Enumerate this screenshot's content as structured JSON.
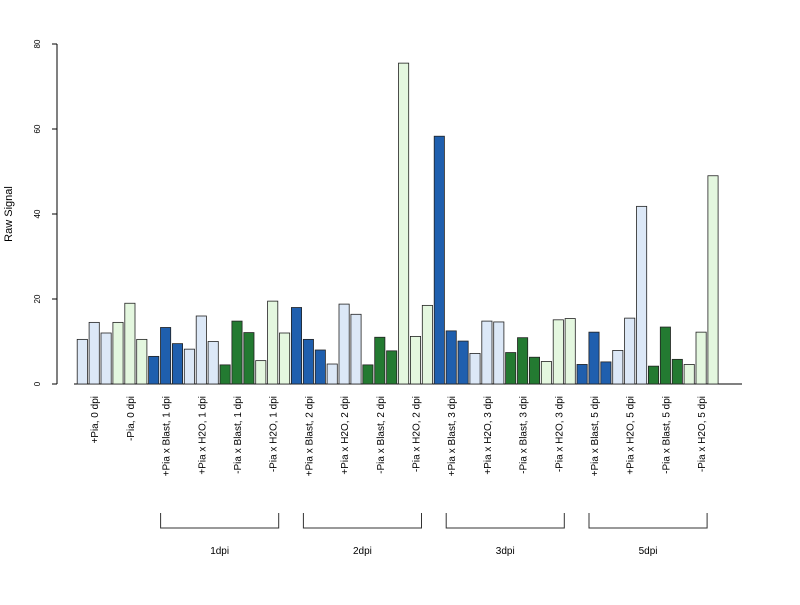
{
  "chart_data": {
    "type": "bar",
    "ylabel": "Raw Signal",
    "xlabel": "",
    "ylim": [
      0,
      80
    ],
    "yticks": [
      0,
      20,
      40,
      60,
      80
    ],
    "grid": false,
    "bars_per_category": 3,
    "categories": [
      "+Pia, 0 dpi",
      "-Pia, 0 dpi",
      "+Pia x Blast, 1 dpi",
      "+Pia x H2O, 1 dpi",
      "-Pia x Blast, 1 dpi",
      "-Pia x H2O, 1 dpi",
      "+Pia x Blast, 2 dpi",
      "+Pia x H2O, 2 dpi",
      "-Pia x Blast, 2 dpi",
      "-Pia x H2O, 2 dpi",
      "+Pia x Blast, 3 dpi",
      "+Pia x H2O, 3 dpi",
      "-Pia x Blast, 3 dpi",
      "-Pia x H2O, 3 dpi",
      "+Pia x Blast, 5 dpi",
      "+Pia x H2O, 5 dpi",
      "-Pia x Blast, 5 dpi",
      "-Pia x H2O, 5 dpi"
    ],
    "values": [
      [
        10.5,
        14.5,
        12.0
      ],
      [
        14.5,
        19.0,
        10.5
      ],
      [
        6.5,
        13.3,
        9.5
      ],
      [
        8.2,
        16.0,
        10.0
      ],
      [
        4.5,
        14.8,
        12.1
      ],
      [
        5.5,
        19.5,
        12.0
      ],
      [
        18.0,
        10.5,
        8.0
      ],
      [
        4.7,
        18.8,
        16.4
      ],
      [
        4.5,
        11.0,
        7.8
      ],
      [
        75.5,
        11.2,
        18.5
      ],
      [
        58.3,
        12.5,
        10.1
      ],
      [
        7.2,
        14.8,
        14.6
      ],
      [
        7.4,
        10.9,
        6.3
      ],
      [
        5.3,
        15.1,
        15.4
      ],
      [
        4.6,
        12.2,
        5.2
      ],
      [
        7.9,
        15.5,
        41.8
      ],
      [
        4.2,
        13.4,
        5.8
      ],
      [
        4.6,
        12.2,
        49.0
      ]
    ],
    "category_colors": [
      "#dce8f7",
      "#e4f7df",
      "#1f5fae",
      "#dce8f7",
      "#237a31",
      "#e4f7df",
      "#1f5fae",
      "#dce8f7",
      "#237a31",
      "#e4f7df",
      "#1f5fae",
      "#dce8f7",
      "#237a31",
      "#e4f7df",
      "#1f5fae",
      "#dce8f7",
      "#237a31",
      "#e4f7df"
    ],
    "groups": [
      {
        "label": "1dpi",
        "first_category": 2,
        "last_category": 5
      },
      {
        "label": "2dpi",
        "first_category": 6,
        "last_category": 9
      },
      {
        "label": "3dpi",
        "first_category": 10,
        "last_category": 13
      },
      {
        "label": "5dpi",
        "first_category": 14,
        "last_category": 17
      }
    ]
  }
}
